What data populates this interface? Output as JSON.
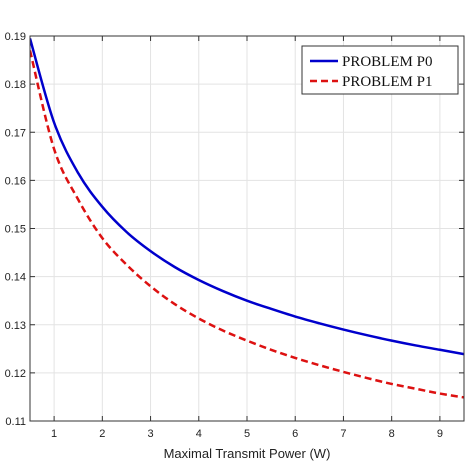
{
  "chart_data": {
    "type": "line",
    "title": "",
    "xlabel": "Maximal Transmit Power (W)",
    "ylabel": "",
    "xlim": [
      0.5,
      9.5
    ],
    "ylim": [
      0.11,
      0.19
    ],
    "xticks": [
      1,
      2,
      3,
      4,
      5,
      6,
      7,
      8,
      9
    ],
    "xtick_labels": [
      "1",
      "2",
      "3",
      "4",
      "5",
      "6",
      "7",
      "8",
      "9"
    ],
    "yticks": [
      0.11,
      0.12,
      0.13,
      0.14,
      0.15,
      0.16,
      0.17,
      0.18,
      0.19
    ],
    "ytick_labels": [
      "0.11",
      "0.12",
      "0.13",
      "0.14",
      "0.15",
      "0.16",
      "0.17",
      "0.18",
      "0.19"
    ],
    "grid": true,
    "legend_position": "top-right",
    "x": [
      0.5,
      1,
      1.5,
      2,
      2.5,
      3,
      3.5,
      4,
      4.5,
      5,
      5.5,
      6,
      6.5,
      7,
      7.5,
      8,
      8.5,
      9,
      9.5
    ],
    "series": [
      {
        "name": "PROBLEM P0",
        "color": "#0000cc",
        "dash": "solid",
        "values": [
          0.1895,
          0.172,
          0.1615,
          0.1545,
          0.1493,
          0.1453,
          0.142,
          0.1393,
          0.137,
          0.135,
          0.1333,
          0.1317,
          0.1303,
          0.129,
          0.1278,
          0.1267,
          0.1257,
          0.1248,
          0.1239
        ]
      },
      {
        "name": "PROBLEM P1",
        "color": "#dd1111",
        "dash": "dashed",
        "values": [
          0.187,
          0.1665,
          0.156,
          0.148,
          0.1425,
          0.138,
          0.1343,
          0.1313,
          0.1288,
          0.1267,
          0.1248,
          0.1231,
          0.1216,
          0.1202,
          0.1189,
          0.1177,
          0.1167,
          0.1157,
          0.1149
        ]
      }
    ]
  }
}
